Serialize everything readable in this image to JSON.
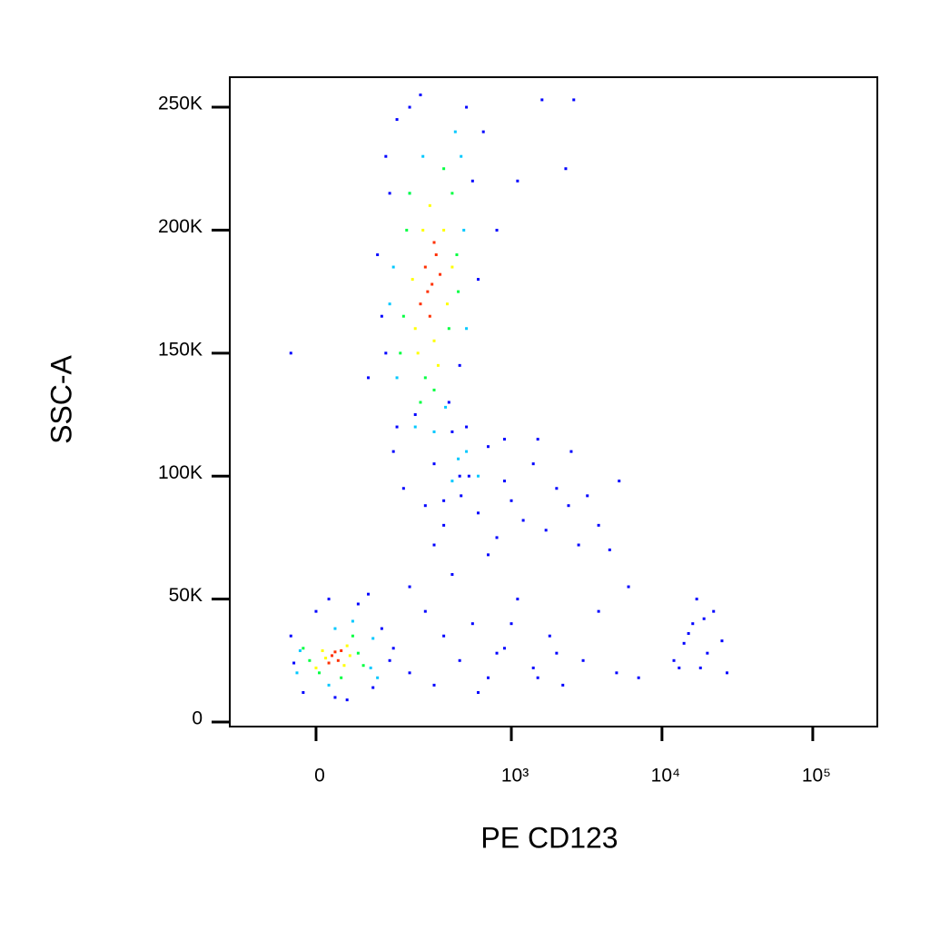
{
  "chart_data": {
    "type": "scatter",
    "x_label": "PE CD123",
    "y_label": "SSC-A",
    "xscale": "biexponential",
    "xlim": [
      -176,
      268000
    ],
    "ylim": [
      -1846,
      262200
    ],
    "xticks": [
      {
        "value": 0,
        "label": "0"
      },
      {
        "value": 1000,
        "label": "10³"
      },
      {
        "value": 10000,
        "label": "10⁴"
      },
      {
        "value": 100000,
        "label": "10⁵"
      }
    ],
    "yticks": [
      {
        "value": 0,
        "label": "0"
      },
      {
        "value": 50000,
        "label": "50K"
      },
      {
        "value": 100000,
        "label": "100K"
      },
      {
        "value": 150000,
        "label": "150K"
      },
      {
        "value": 200000,
        "label": "200K"
      },
      {
        "value": 250000,
        "label": "250K"
      }
    ],
    "series": [
      {
        "color": "#0000ff",
        "x": [
          150,
          180,
          220,
          260,
          300,
          350,
          400,
          460,
          520,
          600,
          700,
          800,
          900,
          1000,
          1200,
          1400,
          1700,
          2000,
          2400,
          2800,
          3200,
          3800,
          4500,
          5200,
          300,
          500,
          900,
          1500,
          2500,
          700,
          450,
          350,
          110,
          120,
          140,
          90,
          130,
          160,
          200,
          240,
          500,
          550,
          600,
          650,
          800,
          1100,
          1600,
          2300,
          2600,
          160,
          130,
          450,
          380,
          -40,
          150,
          200,
          260,
          350,
          450,
          550,
          700,
          900,
          1100,
          1400,
          1800,
          2200,
          3000,
          3800,
          5000,
          6000,
          7000,
          200,
          300,
          400,
          600,
          800,
          1000,
          1500,
          2000,
          -40,
          -20,
          0,
          30,
          70,
          100,
          120,
          140,
          20,
          50,
          -35,
          90,
          12000,
          14000,
          16000,
          18000,
          20000,
          22000,
          25000,
          27000,
          15000,
          19000,
          13000,
          17000
        ],
        "values": [
          110000,
          95000,
          125000,
          88000,
          105000,
          80000,
          118000,
          92000,
          100000,
          85000,
          112000,
          75000,
          98000,
          90000,
          82000,
          105000,
          78000,
          95000,
          88000,
          72000,
          92000,
          80000,
          70000,
          98000,
          72000,
          120000,
          115000,
          115000,
          110000,
          68000,
          100000,
          90000,
          190000,
          165000,
          215000,
          140000,
          230000,
          245000,
          250000,
          255000,
          250000,
          220000,
          180000,
          240000,
          200000,
          220000,
          253000,
          225000,
          253000,
          120000,
          150000,
          145000,
          130000,
          150000,
          30000,
          20000,
          45000,
          35000,
          25000,
          40000,
          18000,
          30000,
          50000,
          22000,
          35000,
          15000,
          25000,
          45000,
          20000,
          55000,
          18000,
          55000,
          15000,
          60000,
          12000,
          28000,
          40000,
          18000,
          28000,
          35000,
          12000,
          45000,
          10000,
          48000,
          14000,
          38000,
          25000,
          50000,
          9000,
          24000,
          52000,
          25000,
          32000,
          40000,
          22000,
          28000,
          45000,
          33000,
          20000,
          36000,
          42000,
          22000,
          50000
        ]
      },
      {
        "color": "#00c8ff",
        "x": [
          150,
          160,
          460,
          480,
          220,
          420,
          140,
          200,
          500,
          300,
          360,
          440,
          250,
          100,
          -25,
          95,
          110,
          -30,
          30,
          20,
          60,
          500,
          600,
          400
        ],
        "values": [
          185000,
          140000,
          230000,
          200000,
          120000,
          240000,
          170000,
          215000,
          160000,
          118000,
          128000,
          107000,
          230000,
          34000,
          29000,
          22000,
          18000,
          20000,
          38000,
          15000,
          41000,
          110000,
          100000,
          98000
        ]
      },
      {
        "color": "#00ff40",
        "x": [
          190,
          180,
          400,
          430,
          260,
          350,
          170,
          240,
          380,
          300,
          200,
          440,
          70,
          -10,
          60,
          5,
          80,
          -20,
          40
        ],
        "values": [
          200000,
          165000,
          215000,
          190000,
          140000,
          225000,
          150000,
          130000,
          160000,
          135000,
          215000,
          175000,
          28000,
          25000,
          35000,
          20000,
          23000,
          30000,
          18000
        ]
      },
      {
        "color": "#ffff00",
        "x": [
          220,
          350,
          370,
          250,
          230,
          300,
          400,
          210,
          280,
          320,
          50,
          10,
          45,
          15,
          55,
          0
        ],
        "values": [
          160000,
          200000,
          170000,
          200000,
          150000,
          155000,
          185000,
          180000,
          210000,
          145000,
          31000,
          29000,
          23000,
          26000,
          27000,
          22000
        ]
      },
      {
        "color": "#ff3000",
        "x": [
          260,
          290,
          310,
          240,
          280,
          330,
          300,
          270,
          25,
          35,
          40,
          20,
          30
        ],
        "values": [
          185000,
          178000,
          190000,
          170000,
          165000,
          182000,
          195000,
          175000,
          27000,
          25000,
          29000,
          24000,
          28500
        ]
      }
    ]
  }
}
